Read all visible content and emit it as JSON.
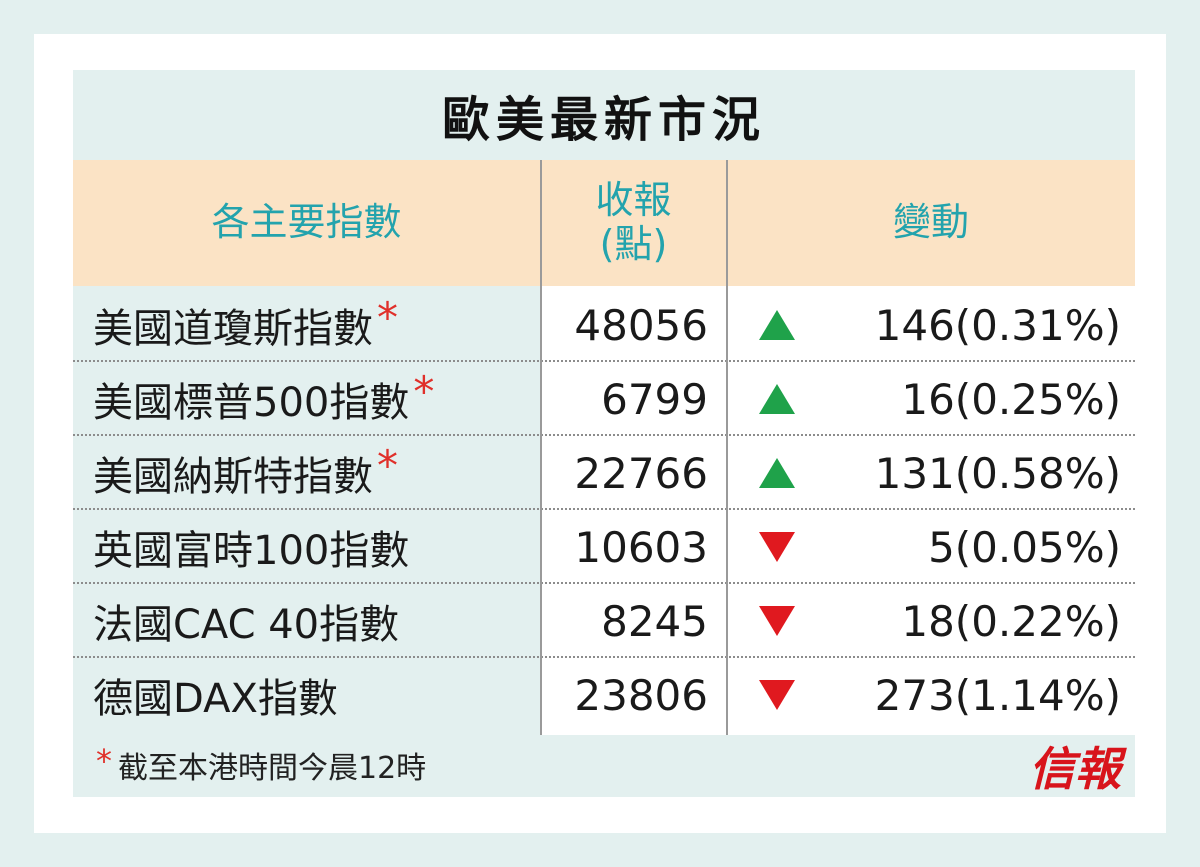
{
  "title": "歐美最新市況",
  "headers": {
    "name": "各主要指數",
    "close_line1": "收報",
    "close_line2": "(點)",
    "change": "變動"
  },
  "rows": [
    {
      "name": "美國道瓊斯指數",
      "star": "*",
      "close": "48056",
      "direction": "up",
      "change": "146(0.31%)"
    },
    {
      "name": "美國標普500指數",
      "star": "*",
      "close": "6799",
      "direction": "up",
      "change": "16(0.25%)"
    },
    {
      "name": "美國納斯特指數",
      "star": "*",
      "close": "22766",
      "direction": "up",
      "change": "131(0.58%)"
    },
    {
      "name": "英國富時100指數",
      "star": "",
      "close": "10603",
      "direction": "down",
      "change": "5(0.05%)"
    },
    {
      "name": "法國CAC 40指數",
      "star": "",
      "close": "8245",
      "direction": "down",
      "change": "18(0.22%)"
    },
    {
      "name": "德國DAX指數",
      "star": "",
      "close": "23806",
      "direction": "down",
      "change": "273(1.14%)"
    }
  ],
  "footnote": {
    "star": "*",
    "text": "截至本港時間今晨12時"
  },
  "logo": "信報",
  "colors": {
    "header_text": "#23a3ad",
    "header_bg": "#fbe3c5",
    "panel_bg": "#e3f0ef",
    "up": "#1fa24a",
    "down": "#e0191f",
    "star": "#e0302a",
    "logo": "#d8141b"
  }
}
